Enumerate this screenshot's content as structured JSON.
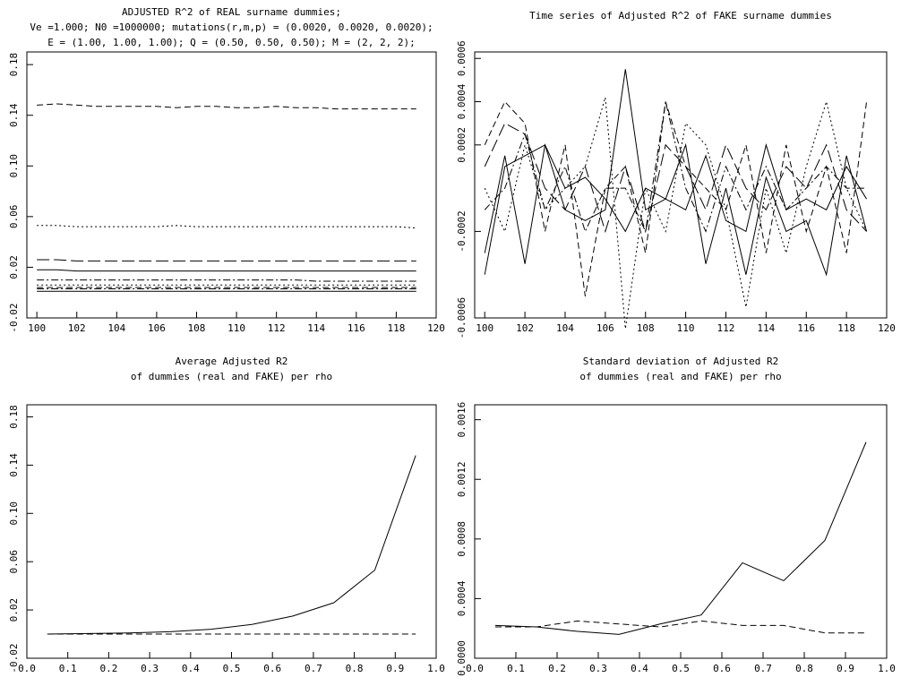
{
  "chart_data": [
    {
      "type": "line",
      "title": [
        "ADJUSTED R^2 of REAL surname dummies;",
        "Ve =1.000; N0 =1000000; mutations(r,m,p) = (0.0020, 0.0020, 0.0020);",
        "E = (1.00, 1.00, 1.00); Q = (0.50, 0.50, 0.50); M = (2, 2, 2);"
      ],
      "x": [
        100,
        101,
        102,
        103,
        104,
        105,
        106,
        107,
        108,
        109,
        110,
        111,
        112,
        113,
        114,
        115,
        116,
        117,
        118,
        119
      ],
      "xlim": [
        99.5,
        120
      ],
      "xticks": [
        100,
        102,
        104,
        106,
        108,
        110,
        112,
        114,
        116,
        118,
        120
      ],
      "ylim": [
        -0.02,
        0.19
      ],
      "yticks": [
        -0.02,
        0.02,
        0.06,
        {
          "value": 0.1,
          "label": "0.10"
        },
        0.14,
        0.18
      ],
      "series": [
        {
          "dash": "dashed",
          "values": [
            0.148,
            0.149,
            0.148,
            0.147,
            0.147,
            0.147,
            0.147,
            0.146,
            0.147,
            0.147,
            0.146,
            0.146,
            0.147,
            0.146,
            0.146,
            0.145,
            0.145,
            0.145,
            0.145,
            0.145
          ]
        },
        {
          "dash": "dotted",
          "values": [
            0.053,
            0.053,
            0.052,
            0.052,
            0.052,
            0.052,
            0.052,
            0.053,
            0.052,
            0.052,
            0.052,
            0.052,
            0.052,
            0.052,
            0.052,
            0.052,
            0.052,
            0.052,
            0.052,
            0.051
          ]
        },
        {
          "dash": "longdash",
          "values": [
            0.026,
            0.026,
            0.025,
            0.025,
            0.025,
            0.025,
            0.025,
            0.025,
            0.025,
            0.025,
            0.025,
            0.025,
            0.025,
            0.025,
            0.025,
            0.025,
            0.025,
            0.025,
            0.025,
            0.025
          ]
        },
        {
          "dash": "solid",
          "values": [
            0.018,
            0.018,
            0.017,
            0.017,
            0.017,
            0.017,
            0.017,
            0.017,
            0.017,
            0.017,
            0.017,
            0.017,
            0.017,
            0.017,
            0.017,
            0.017,
            0.017,
            0.017,
            0.017,
            0.017
          ]
        },
        {
          "dash": "dashdot",
          "values": [
            0.01,
            0.01,
            0.01,
            0.01,
            0.01,
            0.01,
            0.01,
            0.01,
            0.01,
            0.01,
            0.01,
            0.01,
            0.01,
            0.01,
            0.009,
            0.009,
            0.009,
            0.009,
            0.009,
            0.009
          ]
        },
        {
          "dash": "dotted",
          "values": [
            0.006,
            0.006,
            0.006,
            0.006,
            0.006,
            0.006,
            0.006,
            0.006,
            0.006,
            0.006,
            0.006,
            0.006,
            0.006,
            0.006,
            0.006,
            0.006,
            0.006,
            0.006,
            0.006,
            0.006
          ]
        },
        {
          "dash": "dashed",
          "values": [
            0.004,
            0.004,
            0.004,
            0.004,
            0.004,
            0.004,
            0.004,
            0.004,
            0.004,
            0.004,
            0.004,
            0.004,
            0.004,
            0.004,
            0.004,
            0.004,
            0.004,
            0.004,
            0.004,
            0.004
          ]
        },
        {
          "dash": "dashdot",
          "values": [
            0.003,
            0.003,
            0.003,
            0.003,
            0.003,
            0.003,
            0.003,
            0.003,
            0.003,
            0.003,
            0.003,
            0.003,
            0.003,
            0.003,
            0.003,
            0.003,
            0.003,
            0.003,
            0.003,
            0.003
          ]
        },
        {
          "dash": "solid",
          "values": [
            0.001,
            0.001,
            0.001,
            0.001,
            0.001,
            0.001,
            0.001,
            0.001,
            0.001,
            0.001,
            0.001,
            0.001,
            0.001,
            0.001,
            0.001,
            0.001,
            0.001,
            0.001,
            0.001,
            0.001
          ]
        }
      ]
    },
    {
      "type": "line",
      "title": [
        "Time series of Adjusted R^2 of FAKE surname dummies"
      ],
      "x": [
        100,
        101,
        102,
        103,
        104,
        105,
        106,
        107,
        108,
        109,
        110,
        111,
        112,
        113,
        114,
        115,
        116,
        117,
        118,
        119
      ],
      "xlim": [
        99.5,
        120
      ],
      "xticks": [
        100,
        102,
        104,
        106,
        108,
        110,
        112,
        114,
        116,
        118,
        120
      ],
      "ylim": [
        -0.0006,
        0.00063
      ],
      "yticks": [
        -0.0006,
        -0.0002,
        0.0002,
        0.0004,
        0.0006
      ],
      "series": [
        {
          "dash": "solid",
          "values": [
            -0.0004,
            0.0001,
            0.00015,
            0.0002,
            -0.0001,
            -0.00015,
            -0.0001,
            0.00055,
            -0.0001,
            -5e-05,
            -0.0001,
            0.00015,
            -0.00015,
            -0.0002,
            0.0002,
            -0.0001,
            -5e-05,
            -0.0001,
            0.0001,
            -5e-05
          ]
        },
        {
          "dash": "solid",
          "values": [
            -0.0003,
            0.00015,
            -0.00035,
            0.0002,
            0.0,
            5e-05,
            -5e-05,
            -0.0002,
            0.0,
            -5e-05,
            0.0002,
            -0.00035,
            0.0,
            -0.0004,
            5e-05,
            -0.0002,
            -0.00015,
            -0.0004,
            0.00015,
            -0.0002
          ]
        },
        {
          "dash": "dashed",
          "values": [
            0.0002,
            0.0004,
            0.0003,
            -0.0002,
            0.0002,
            -0.0005,
            0.0,
            0.0001,
            -0.0003,
            0.0004,
            0.0001,
            0.0,
            -0.0001,
            0.0002,
            -0.0003,
            0.0002,
            -0.0002,
            0.0001,
            -0.0003,
            0.0004
          ]
        },
        {
          "dash": "dotted",
          "values": [
            0.0,
            -0.0002,
            0.0002,
            -0.0001,
            0.0,
            0.0001,
            0.00042,
            -0.00065,
            0.0,
            -0.0002,
            0.0003,
            0.0002,
            -0.0001,
            -0.00055,
            0.0,
            -0.0003,
            0.0001,
            0.0004,
            0.0,
            -0.0002
          ]
        },
        {
          "dash": "dashdot",
          "values": [
            -0.0001,
            0.0,
            0.00025,
            -0.0001,
            0.0001,
            -0.0002,
            0.0,
            0.0,
            -0.0002,
            0.0004,
            0.0,
            -0.0002,
            0.0001,
            -0.0001,
            0.0001,
            -0.0001,
            0.0,
            0.0001,
            0.0,
            0.0
          ]
        },
        {
          "dash": "longdash",
          "values": [
            0.0001,
            0.0003,
            0.00025,
            0.0,
            -0.0001,
            0.0001,
            -0.0002,
            0.0001,
            -0.0002,
            0.0002,
            0.0001,
            -0.0001,
            0.0002,
            0.0,
            -0.0001,
            0.0001,
            0.0,
            0.0002,
            -0.0001,
            -0.0002
          ]
        }
      ]
    },
    {
      "type": "line",
      "title": [
        "Average Adjusted R2",
        "of dummies (real and FAKE) per rho"
      ],
      "x": [
        0.05,
        0.15,
        0.25,
        0.35,
        0.45,
        0.55,
        0.65,
        0.75,
        0.85,
        0.95
      ],
      "xlim": [
        0,
        1
      ],
      "xticks": [
        {
          "value": 0,
          "label": "0.0"
        },
        0.1,
        0.2,
        0.3,
        0.4,
        0.5,
        0.6,
        0.7,
        0.8,
        0.9,
        {
          "value": 1,
          "label": "1.0"
        }
      ],
      "ylim": [
        -0.02,
        0.19
      ],
      "yticks": [
        -0.02,
        0.02,
        0.06,
        {
          "value": 0.1,
          "label": "0.10"
        },
        0.14,
        0.18
      ],
      "series": [
        {
          "dash": "solid",
          "values": [
            0.0,
            0.0005,
            0.001,
            0.002,
            0.004,
            0.008,
            0.015,
            0.026,
            0.053,
            0.148
          ]
        },
        {
          "dash": "dashed",
          "values": [
            0.0,
            0.0,
            0.0,
            0.0,
            0.0,
            0.0,
            0.0,
            0.0,
            0.0,
            0.0
          ]
        }
      ]
    },
    {
      "type": "line",
      "title": [
        "Standard deviation of Adjusted R2",
        "of dummies (real and FAKE) per rho"
      ],
      "x": [
        0.05,
        0.15,
        0.25,
        0.35,
        0.45,
        0.55,
        0.65,
        0.75,
        0.85,
        0.95
      ],
      "xlim": [
        0,
        1
      ],
      "xticks": [
        {
          "value": 0,
          "label": "0.0"
        },
        0.1,
        0.2,
        0.3,
        0.4,
        0.5,
        0.6,
        0.7,
        0.8,
        0.9,
        {
          "value": 1,
          "label": "1.0"
        }
      ],
      "ylim": [
        0,
        0.0017
      ],
      "yticks": [
        {
          "value": 0,
          "label": "0.0000"
        },
        0.0004,
        0.0008,
        0.0012,
        0.0016
      ],
      "series": [
        {
          "dash": "solid",
          "values": [
            0.00022,
            0.00021,
            0.00018,
            0.00016,
            0.00023,
            0.00029,
            0.00064,
            0.00052,
            0.00079,
            0.00145
          ]
        },
        {
          "dash": "dashed",
          "values": [
            0.00021,
            0.00021,
            0.00025,
            0.00023,
            0.00021,
            0.00025,
            0.00022,
            0.00022,
            0.00017,
            0.00017
          ]
        }
      ]
    }
  ]
}
